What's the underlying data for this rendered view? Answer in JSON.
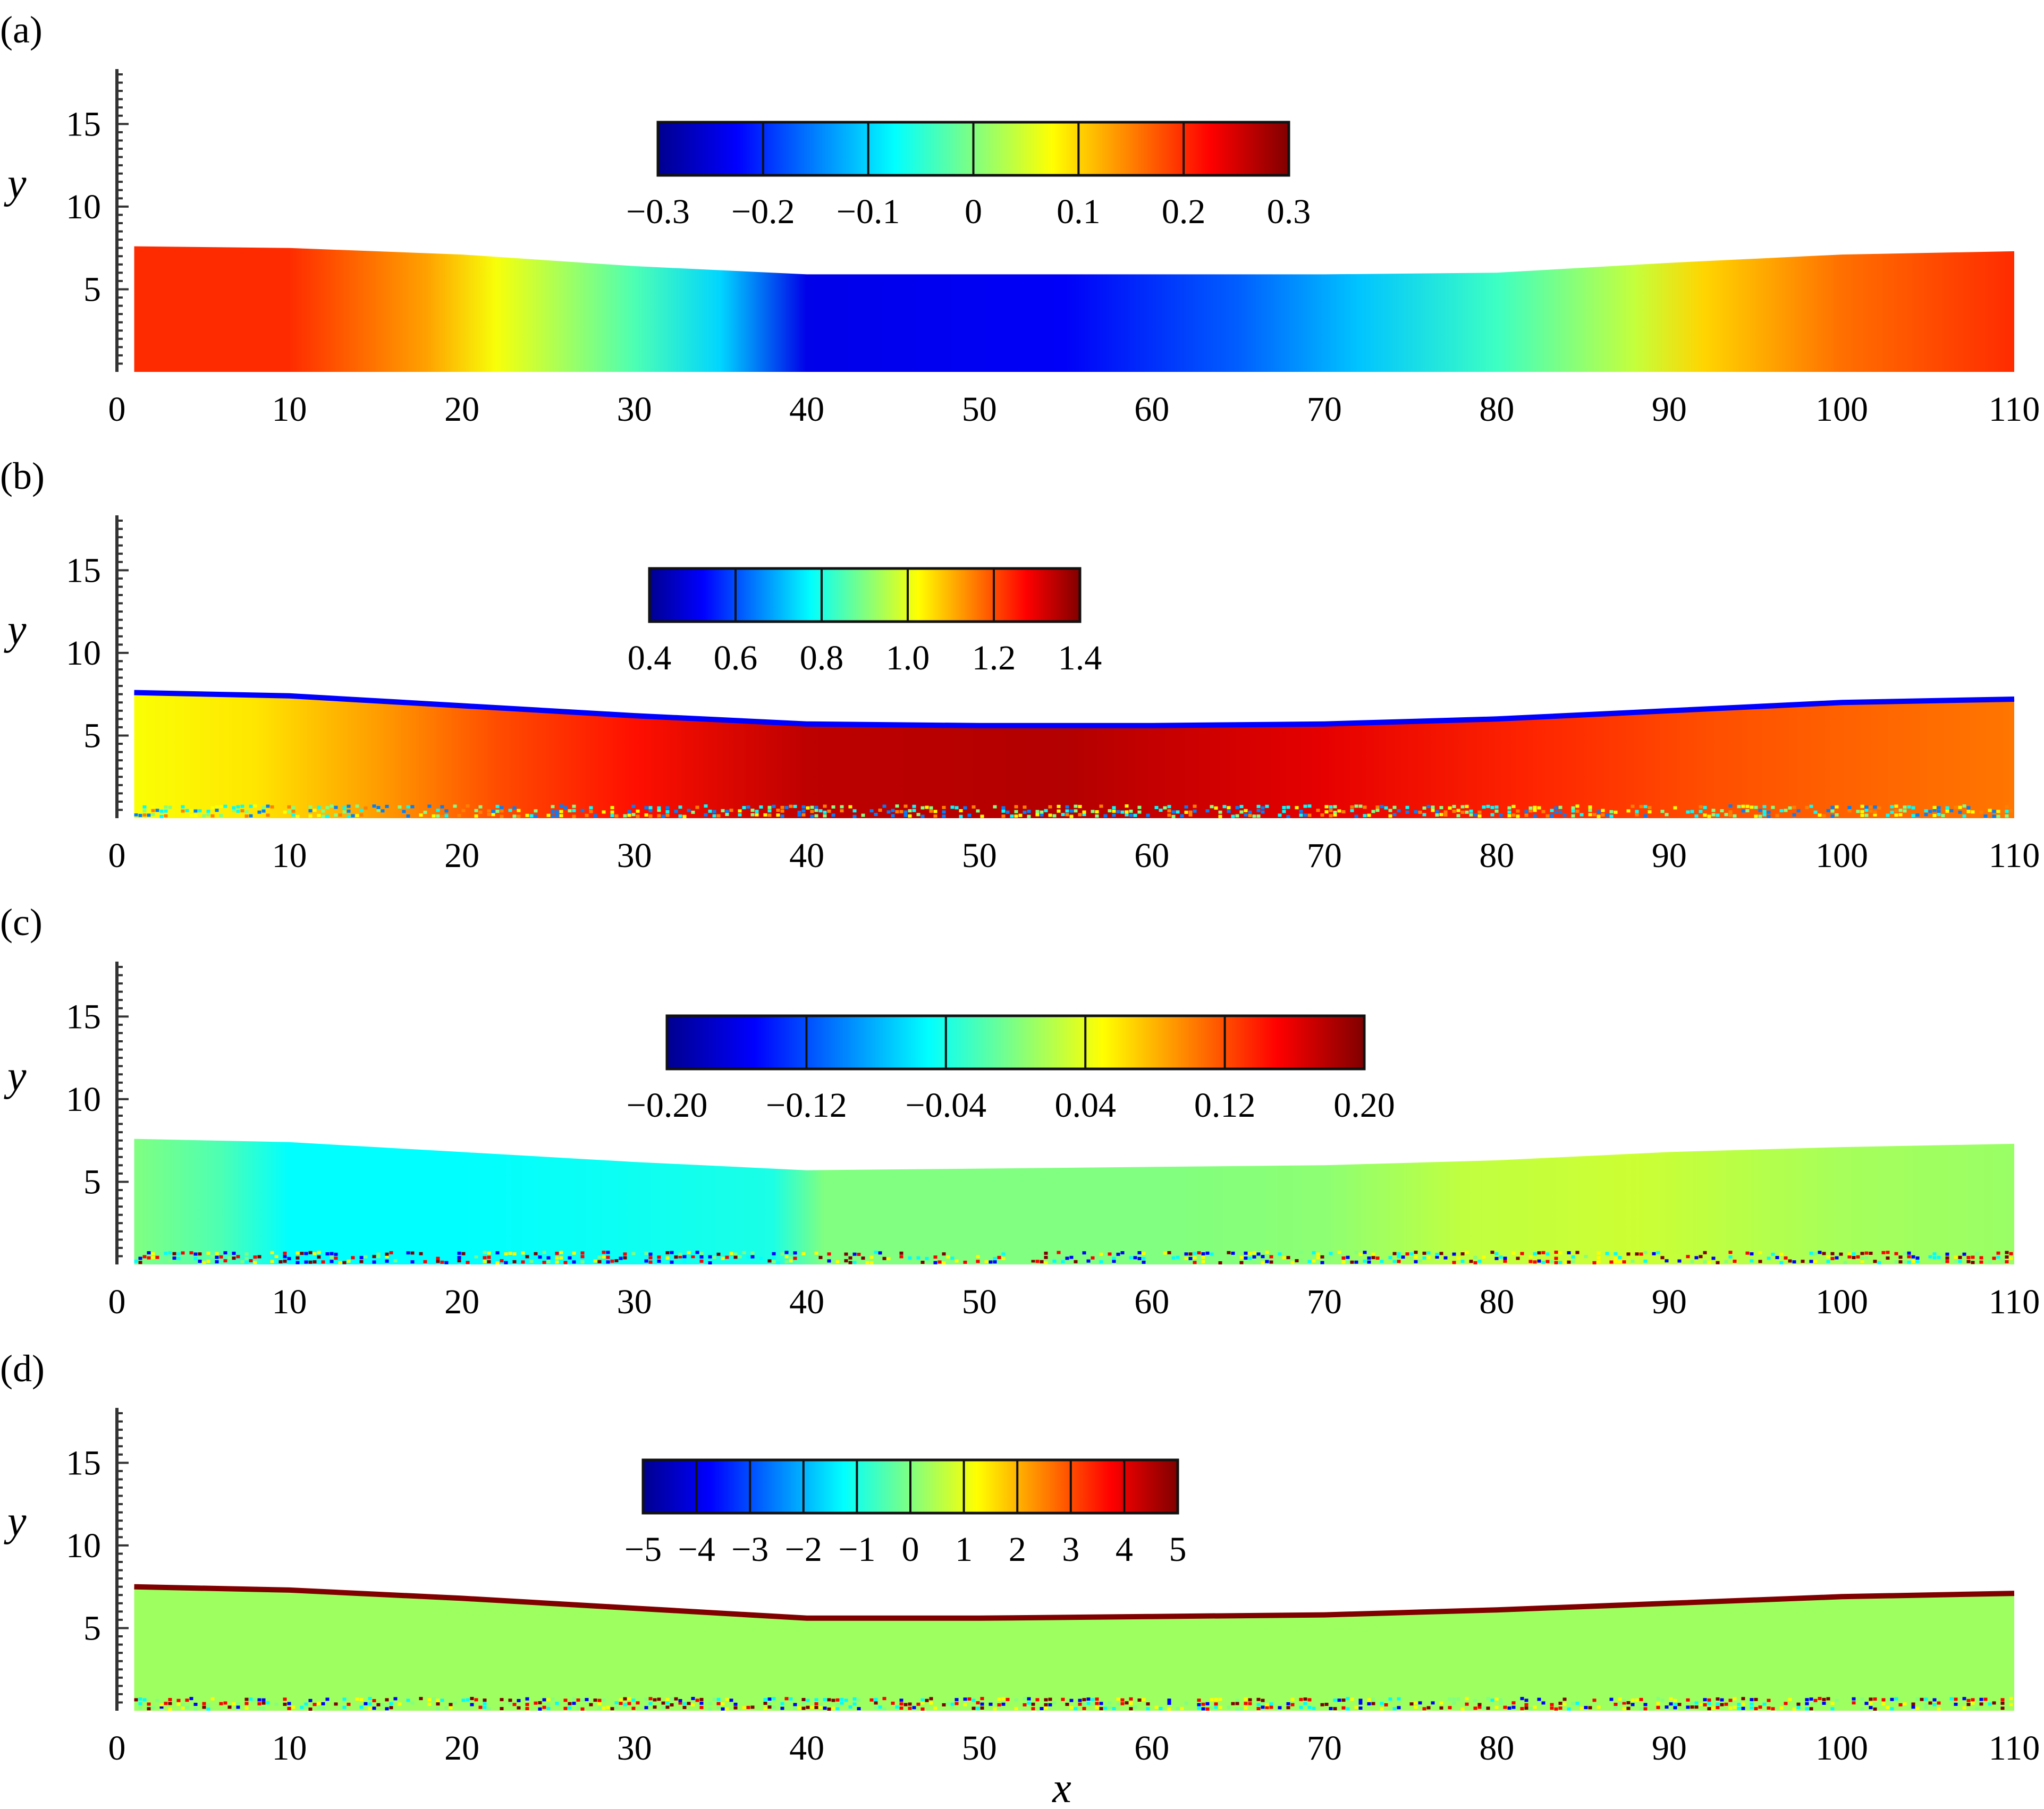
{
  "figure": {
    "x_axis_label": "x",
    "colormap": [
      "#00008f",
      "#0000ff",
      "#0080ff",
      "#00ffff",
      "#80ff80",
      "#ffff00",
      "#ff8000",
      "#ff0000",
      "#800000"
    ]
  },
  "chart_data": [
    {
      "type": "heatmap",
      "panel_label": "(a)",
      "ylabel": "y",
      "xlabel": "",
      "xlim": [
        0,
        110
      ],
      "ylim": [
        0,
        18
      ],
      "x_ticks": [
        "0",
        "10",
        "20",
        "30",
        "40",
        "50",
        "60",
        "70",
        "80",
        "90",
        "100",
        "110"
      ],
      "y_ticks": [
        "5",
        "10",
        "15"
      ],
      "colorbar": {
        "range": [
          -0.3,
          0.3
        ],
        "ticks": [
          "−0.3",
          "−0.2",
          "−0.1",
          "0",
          "0.1",
          "0.2",
          "0.3"
        ]
      },
      "surface": {
        "x": [
          1,
          10,
          20,
          30,
          40,
          50,
          60,
          70,
          80,
          90,
          100,
          110
        ],
        "y": [
          7.6,
          7.5,
          7.1,
          6.4,
          5.9,
          5.9,
          5.9,
          5.9,
          6.0,
          6.6,
          7.1,
          7.3
        ]
      },
      "field": {
        "x": [
          1,
          10,
          18,
          22,
          30,
          35,
          40,
          55,
          65,
          72,
          80,
          88,
          92,
          100,
          110
        ],
        "values": [
          0.2,
          0.2,
          0.13,
          0.07,
          -0.03,
          -0.1,
          -0.24,
          -0.23,
          -0.17,
          -0.11,
          -0.04,
          0.04,
          0.1,
          0.16,
          0.2
        ]
      }
    },
    {
      "type": "heatmap",
      "panel_label": "(b)",
      "ylabel": "y",
      "xlabel": "",
      "xlim": [
        0,
        110
      ],
      "ylim": [
        0,
        18
      ],
      "x_ticks": [
        "0",
        "10",
        "20",
        "30",
        "40",
        "50",
        "60",
        "70",
        "80",
        "90",
        "100",
        "110"
      ],
      "y_ticks": [
        "5",
        "10",
        "15"
      ],
      "colorbar": {
        "range": [
          0.4,
          1.4
        ],
        "ticks": [
          "0.4",
          "0.6",
          "0.8",
          "1.0",
          "1.2",
          "1.4"
        ]
      },
      "surface": {
        "x": [
          1,
          10,
          20,
          30,
          40,
          50,
          60,
          70,
          80,
          90,
          100,
          110
        ],
        "y": [
          7.6,
          7.4,
          6.8,
          6.2,
          5.7,
          5.6,
          5.6,
          5.7,
          6.0,
          6.5,
          7.0,
          7.2
        ]
      },
      "field": {
        "x": [
          1,
          8,
          15,
          22,
          30,
          40,
          55,
          70,
          82,
          92,
          100,
          110
        ],
        "values": [
          1.02,
          1.05,
          1.12,
          1.2,
          1.26,
          1.34,
          1.35,
          1.3,
          1.24,
          1.2,
          1.18,
          1.16
        ]
      }
    },
    {
      "type": "heatmap",
      "panel_label": "(c)",
      "ylabel": "y",
      "xlabel": "",
      "xlim": [
        0,
        110
      ],
      "ylim": [
        0,
        18
      ],
      "x_ticks": [
        "0",
        "10",
        "20",
        "30",
        "40",
        "50",
        "60",
        "70",
        "80",
        "90",
        "100",
        "110"
      ],
      "y_ticks": [
        "5",
        "10",
        "15"
      ],
      "colorbar": {
        "range": [
          -0.2,
          0.2
        ],
        "ticks": [
          "−0.20",
          "−0.12",
          "−0.04",
          "0.04",
          "0.12",
          "0.20"
        ]
      },
      "surface": {
        "x": [
          1,
          10,
          20,
          30,
          40,
          50,
          60,
          70,
          80,
          90,
          100,
          110
        ],
        "y": [
          7.6,
          7.4,
          6.8,
          6.2,
          5.7,
          5.8,
          5.9,
          6.0,
          6.3,
          6.8,
          7.1,
          7.3
        ]
      },
      "field": {
        "x": [
          1,
          6,
          10,
          20,
          30,
          38,
          41,
          50,
          60,
          70,
          78,
          88,
          100,
          110
        ],
        "values": [
          0.0,
          -0.02,
          -0.05,
          -0.05,
          -0.045,
          -0.04,
          0.0,
          0.0,
          0.0,
          0.005,
          0.025,
          0.03,
          0.015,
          0.01
        ]
      }
    },
    {
      "type": "heatmap",
      "panel_label": "(d)",
      "ylabel": "y",
      "xlabel": "x",
      "xlim": [
        0,
        110
      ],
      "ylim": [
        0,
        18
      ],
      "x_ticks": [
        "0",
        "10",
        "20",
        "30",
        "40",
        "50",
        "60",
        "70",
        "80",
        "90",
        "100",
        "110"
      ],
      "y_ticks": [
        "5",
        "10",
        "15"
      ],
      "colorbar": {
        "range": [
          -5,
          5
        ],
        "ticks": [
          "−5",
          "−4",
          "−3",
          "−2",
          "−1",
          "0",
          "1",
          "2",
          "3",
          "4",
          "5"
        ]
      },
      "surface": {
        "x": [
          1,
          10,
          20,
          30,
          40,
          50,
          60,
          70,
          80,
          90,
          100,
          110
        ],
        "y": [
          7.5,
          7.3,
          6.8,
          6.2,
          5.6,
          5.6,
          5.7,
          5.8,
          6.1,
          6.5,
          6.9,
          7.1
        ]
      },
      "field": {
        "x": [
          1,
          110
        ],
        "values": [
          0.3,
          0.3
        ]
      }
    }
  ]
}
